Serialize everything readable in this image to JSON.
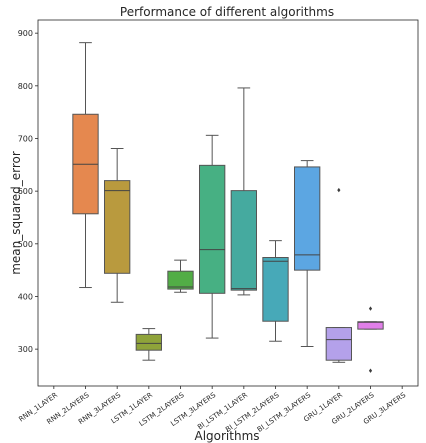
{
  "chart_data": {
    "type": "box",
    "title": "Performance of different algorithms",
    "xlabel": "Algorithms",
    "ylabel": "mean_squared_error",
    "ylim": [
      230,
      925
    ],
    "yticks": [
      "300",
      "400",
      "500",
      "600",
      "700",
      "800",
      "900"
    ],
    "legend": "none",
    "grid": false,
    "categories": [
      "RNN_1LAYER",
      "RNN_2LAYERS",
      "RNN_3LAYERS",
      "LSTM_1LAYER",
      "LSTM_2LAYERS",
      "LSTM_3LAYERS",
      "BI_LSTM_1LAYER",
      "BI_LSTM_2LAYERS",
      "BI_LSTM_3LAYERS",
      "GRU_1LAYER",
      "GRU_2LAYERS",
      "GRU_3LAYERS"
    ],
    "boxes": [
      {
        "category": "RNN_1LAYER",
        "color": null
      },
      {
        "category": "RNN_2LAYERS",
        "color": "#e5884f",
        "whisker_low": 417,
        "q1": 557,
        "median": 651,
        "q3": 746,
        "whisker_high": 882,
        "outliers": []
      },
      {
        "category": "RNN_3LAYERS",
        "color": "#b99a3e",
        "whisker_low": 389,
        "q1": 444,
        "median": 601,
        "q3": 620,
        "whisker_high": 681,
        "outliers": []
      },
      {
        "category": "LSTM_1LAYER",
        "color": "#8fa33a",
        "whisker_low": 279,
        "q1": 298,
        "median": 311,
        "q3": 328,
        "whisker_high": 339,
        "outliers": []
      },
      {
        "category": "LSTM_2LAYERS",
        "color": "#52ad46",
        "whisker_low": 408,
        "q1": 414,
        "median": 418,
        "q3": 448,
        "whisker_high": 469,
        "outliers": []
      },
      {
        "category": "LSTM_3LAYERS",
        "color": "#47b083",
        "whisker_low": 321,
        "q1": 406,
        "median": 489,
        "q3": 649,
        "whisker_high": 706,
        "outliers": []
      },
      {
        "category": "BI_LSTM_1LAYER",
        "color": "#45aa9f",
        "whisker_low": 403,
        "q1": 412,
        "median": 415,
        "q3": 601,
        "whisker_high": 796,
        "outliers": []
      },
      {
        "category": "BI_LSTM_2LAYERS",
        "color": "#47a9b8",
        "whisker_low": 315,
        "q1": 353,
        "median": 467,
        "q3": 474,
        "whisker_high": 506,
        "outliers": []
      },
      {
        "category": "BI_LSTM_3LAYERS",
        "color": "#5ca6e2",
        "whisker_low": 305,
        "q1": 450,
        "median": 479,
        "q3": 646,
        "whisker_high": 658,
        "outliers": []
      },
      {
        "category": "GRU_1LAYER",
        "color": "#b4a1ea",
        "whisker_low": 275,
        "q1": 279,
        "median": 318,
        "q3": 341,
        "whisker_high": 341,
        "outliers": [
          602
        ]
      },
      {
        "category": "GRU_2LAYERS",
        "color": "#e07fe8",
        "whisker_low": 338,
        "q1": 338,
        "median": 351,
        "q3": 352,
        "whisker_high": 352,
        "outliers": [
          377,
          259
        ]
      },
      {
        "category": "GRU_3LAYERS",
        "color": null
      }
    ],
    "colors": {
      "box_edge": "#555555",
      "median": "#444444",
      "axis": "#262626",
      "outlier_fill": "#3c3c3c"
    }
  }
}
